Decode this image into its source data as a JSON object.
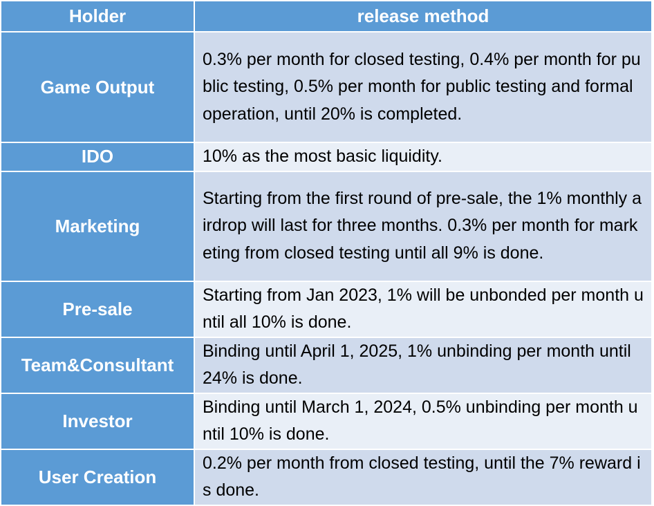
{
  "header": {
    "holder": "Holder",
    "method": "release method"
  },
  "rows": [
    {
      "holder": "Game Output",
      "method": "0.3% per month for closed testing, 0.4% per month for public testing, 0.5% per month for public testing and formal operation, until 20% is completed."
    },
    {
      "holder": "IDO",
      "method": "10% as the most basic liquidity."
    },
    {
      "holder": "Marketing",
      "method": "Starting from the first round of pre-sale, the 1% monthly airdrop will last for three months. 0.3% per month for marketing from closed testing until all 9% is done."
    },
    {
      "holder": "Pre-sale",
      "method": "Starting from Jan 2023, 1% will be unbonded per month until all 10% is done."
    },
    {
      "holder": "Team&Consultant",
      "method": "Binding until April 1, 2025, 1% unbinding per month until 24% is done."
    },
    {
      "holder": "Investor",
      "method": "Binding until March 1, 2024, 0.5% unbinding per month until 10% is done."
    },
    {
      "holder": "User Creation",
      "method": "0.2% per month from closed testing, until the 7% reward is done."
    }
  ],
  "colors": {
    "header_bg": "#5b9bd5",
    "row_dark": "#cfdaec",
    "row_light": "#e9eff7",
    "border": "#ffffff"
  }
}
